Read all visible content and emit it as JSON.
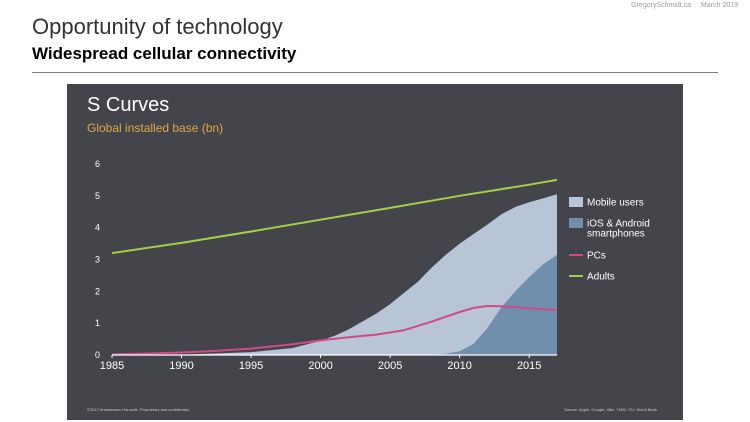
{
  "slide": {
    "title": "Opportunity of technology",
    "subtitle": "Widespread cellular connectivity",
    "author": "GregorySchmidt.ca",
    "date": "March 2019"
  },
  "chart_data": {
    "type": "area",
    "title": "S Curves",
    "subtitle": "Global installed base (bn)",
    "xlabel": "",
    "ylabel": "",
    "xlim": [
      1985,
      2017
    ],
    "ylim": [
      0,
      6
    ],
    "xticks": [
      1985,
      1990,
      1995,
      2000,
      2005,
      2010,
      2015
    ],
    "yticks": [
      0,
      1,
      2,
      3,
      4,
      5,
      6
    ],
    "grid": false,
    "legend_position": "right",
    "footer_left": "©2017 Andreessen Horowitz. Proprietary and confidential.",
    "footer_right": "Source: Apple, Google, cBiz, TMW, ITU, World Bank",
    "colors": {
      "background": "#43454a",
      "mobile": "#b7c5d6",
      "smartphones": "#6f8fad",
      "pcs": "#cf4a86",
      "adults": "#a4cf46",
      "text": "#ffffff",
      "subtitle": "#e0a646"
    },
    "series": [
      {
        "name": "Mobile users",
        "kind": "area",
        "color_key": "mobile",
        "x": [
          1985,
          1990,
          1995,
          1998,
          2000,
          2001,
          2002,
          2003,
          2004,
          2005,
          2006,
          2007,
          2008,
          2009,
          2010,
          2011,
          2012,
          2013,
          2014,
          2015,
          2016,
          2017
        ],
        "y": [
          0,
          0.01,
          0.09,
          0.22,
          0.45,
          0.6,
          0.8,
          1.05,
          1.3,
          1.6,
          1.95,
          2.3,
          2.75,
          3.15,
          3.5,
          3.8,
          4.1,
          4.42,
          4.65,
          4.8,
          4.92,
          5.05
        ]
      },
      {
        "name": "iOS & Android smartphones",
        "kind": "area",
        "color_key": "smartphones",
        "x": [
          2007,
          2008,
          2009,
          2010,
          2011,
          2012,
          2013,
          2014,
          2015,
          2016,
          2017
        ],
        "y": [
          0,
          0.01,
          0.04,
          0.12,
          0.35,
          0.85,
          1.5,
          2.0,
          2.45,
          2.85,
          3.15
        ]
      },
      {
        "name": "PCs",
        "kind": "line",
        "color_key": "pcs",
        "x": [
          1985,
          1988,
          1990,
          1992,
          1995,
          1998,
          2000,
          2002,
          2004,
          2006,
          2008,
          2010,
          2011,
          2012,
          2013,
          2014,
          2015,
          2016,
          2017
        ],
        "y": [
          0.02,
          0.05,
          0.08,
          0.12,
          0.2,
          0.34,
          0.46,
          0.56,
          0.64,
          0.78,
          1.05,
          1.35,
          1.48,
          1.54,
          1.53,
          1.5,
          1.47,
          1.44,
          1.42
        ]
      },
      {
        "name": "Adults",
        "kind": "line",
        "color_key": "adults",
        "x": [
          1985,
          1990,
          1995,
          2000,
          2005,
          2010,
          2015,
          2017
        ],
        "y": [
          3.2,
          3.52,
          3.88,
          4.25,
          4.62,
          5.0,
          5.35,
          5.5
        ]
      }
    ],
    "legend": [
      {
        "label": "Mobile users",
        "color_key": "mobile",
        "marker": "box"
      },
      {
        "label": "iOS & Android smartphones",
        "color_key": "smartphones",
        "marker": "box"
      },
      {
        "label": "PCs",
        "color_key": "pcs",
        "marker": "line"
      },
      {
        "label": "Adults",
        "color_key": "adults",
        "marker": "line"
      }
    ]
  }
}
